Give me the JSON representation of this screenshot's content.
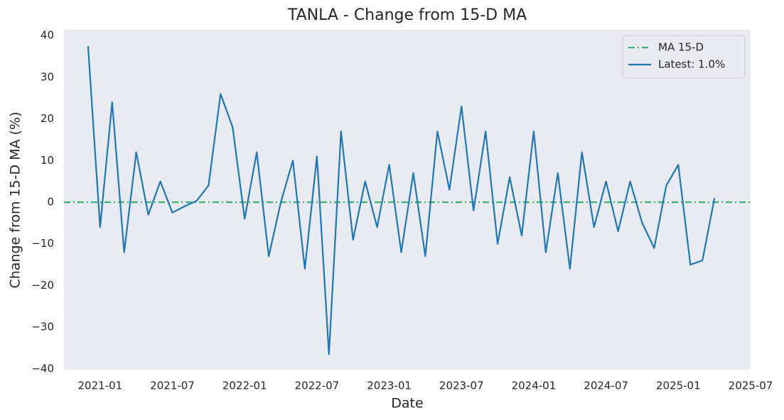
{
  "chart_data": {
    "type": "line",
    "title": "TANLA - Change from 15-D MA",
    "xlabel": "Date",
    "ylabel": "Change from 15-D MA (%)",
    "x": [
      "2020-12",
      "2021-01",
      "2021-02",
      "2021-03",
      "2021-04",
      "2021-05",
      "2021-06",
      "2021-07",
      "2021-08",
      "2021-09",
      "2021-10",
      "2021-11",
      "2021-12",
      "2022-01",
      "2022-02",
      "2022-03",
      "2022-04",
      "2022-05",
      "2022-06",
      "2022-07",
      "2022-08",
      "2022-09",
      "2022-10",
      "2022-11",
      "2022-12",
      "2023-01",
      "2023-02",
      "2023-03",
      "2023-04",
      "2023-05",
      "2023-06",
      "2023-07",
      "2023-08",
      "2023-09",
      "2023-10",
      "2023-11",
      "2023-12",
      "2024-01",
      "2024-02",
      "2024-03",
      "2024-04",
      "2024-05",
      "2024-06",
      "2024-07",
      "2024-08",
      "2024-09",
      "2024-10",
      "2024-11",
      "2024-12",
      "2025-01",
      "2025-02",
      "2025-03",
      "2025-04"
    ],
    "series": [
      {
        "name": "Latest: 1.0%",
        "color": "#1f77b4",
        "values": [
          37.5,
          -6,
          24,
          -12,
          12,
          -3,
          5,
          -2.5,
          -1,
          0.3,
          4,
          26,
          18,
          -4,
          12,
          -13,
          0,
          10,
          -16,
          11,
          -36.5,
          17,
          -9,
          5,
          -6,
          9,
          -12,
          7,
          -13,
          17,
          3,
          23,
          -2,
          17,
          -10,
          6,
          -8,
          17,
          -12,
          7,
          -16,
          12,
          -6,
          5,
          -7,
          5,
          -5,
          -11,
          4,
          9,
          -15,
          -14,
          1.0
        ]
      }
    ],
    "reference_line": {
      "name": "MA 15-D",
      "value": 0,
      "color": "#3cb371"
    },
    "xlim": [
      "2020-10",
      "2025-07"
    ],
    "xticks": [
      "2021-01",
      "2021-07",
      "2022-01",
      "2022-07",
      "2023-01",
      "2023-07",
      "2024-01",
      "2024-07",
      "2025-01",
      "2025-07"
    ],
    "ylim": [
      -40.2,
      41.4
    ],
    "yticks": [
      {
        "value": -40,
        "label": "−40"
      },
      {
        "value": -30,
        "label": "−30"
      },
      {
        "value": -20,
        "label": "−20"
      },
      {
        "value": -10,
        "label": "−10"
      },
      0,
      10,
      20,
      30,
      40
    ],
    "grid": false,
    "legend": "upper right"
  }
}
